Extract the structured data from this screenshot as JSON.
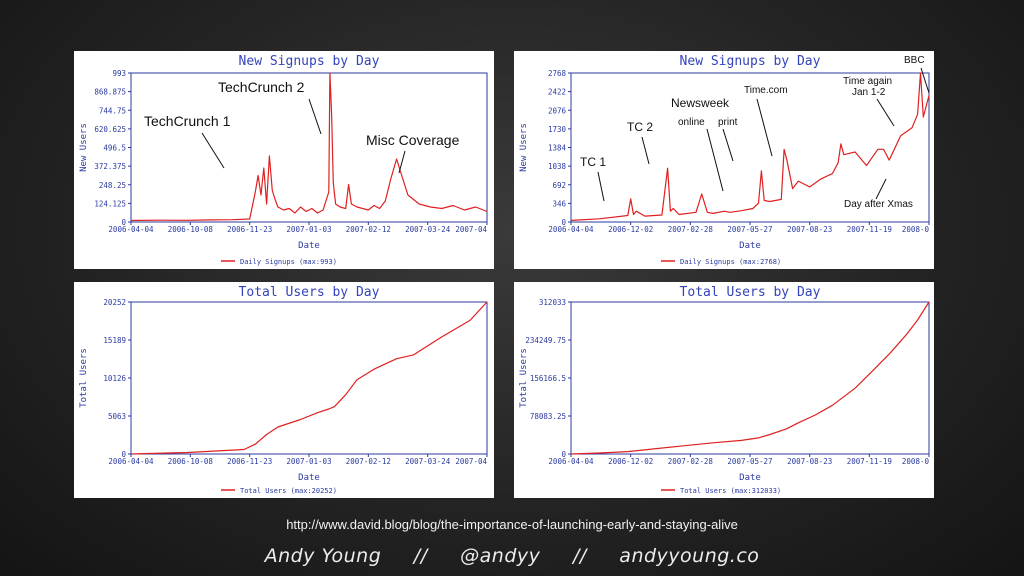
{
  "chart_data": [
    {
      "type": "line",
      "title": "New Signups by Day",
      "xlabel": "Date",
      "ylabel": "New Users",
      "yticks": [
        "993",
        "868.875",
        "744.75",
        "620.625",
        "496.5",
        "372.375",
        "248.25",
        "124.125",
        "0"
      ],
      "ylim": [
        0,
        993
      ],
      "xticks": [
        "2006-04-04",
        "2006-10-08",
        "2006-11-23",
        "2007-01-03",
        "2007-02-12",
        "2007-03-24",
        "2007-04"
      ],
      "xlim": [
        0,
        6.3
      ],
      "legend": "Daily Signups (max:993)",
      "series": [
        {
          "x": [
            0,
            0.5,
            1,
            1.4,
            1.8,
            2.1,
            2.2,
            2.25,
            2.3,
            2.35,
            2.4,
            2.45,
            2.5,
            2.55,
            2.6,
            2.7,
            2.8,
            2.9,
            3.0,
            3.1,
            3.2,
            3.3,
            3.4,
            3.5,
            3.52,
            3.55,
            3.58,
            3.62,
            3.7,
            3.8,
            3.85,
            3.9,
            4.0,
            4.2,
            4.3,
            4.4,
            4.5,
            4.6,
            4.7,
            4.8,
            4.9,
            5.0,
            5.1,
            5.3,
            5.5,
            5.7,
            5.9,
            6.1,
            6.3
          ],
          "y": [
            10,
            12,
            11,
            14,
            15,
            20,
            200,
            310,
            180,
            360,
            120,
            440,
            210,
            150,
            100,
            80,
            90,
            60,
            100,
            70,
            90,
            60,
            80,
            200,
            993,
            720,
            260,
            120,
            100,
            90,
            250,
            120,
            100,
            80,
            110,
            90,
            140,
            290,
            420,
            300,
            180,
            150,
            120,
            100,
            90,
            110,
            80,
            100,
            70
          ]
        }
      ],
      "annotations": [
        "TechCrunch 1",
        "TechCrunch 2",
        "Misc Coverage"
      ]
    },
    {
      "type": "line",
      "title": "New Signups by Day",
      "xlabel": "Date",
      "ylabel": "New Users",
      "yticks": [
        "2768",
        "2422",
        "2076",
        "1730",
        "1384",
        "1038",
        "692",
        "346",
        "0"
      ],
      "ylim": [
        0,
        2768
      ],
      "xticks": [
        "2006-04-04",
        "2006-12-02",
        "2007-02-28",
        "2007-05-27",
        "2007-08-23",
        "2007-11-19",
        "2008-0"
      ],
      "xlim": [
        0,
        6.3
      ],
      "legend": "Daily Signups (max:2768)",
      "series": [
        {
          "x": [
            0,
            0.5,
            1.0,
            1.05,
            1.1,
            1.15,
            1.3,
            1.6,
            1.7,
            1.75,
            1.8,
            1.9,
            2.2,
            2.3,
            2.4,
            2.5,
            2.7,
            2.8,
            3.0,
            3.2,
            3.3,
            3.35,
            3.4,
            3.5,
            3.7,
            3.75,
            3.8,
            3.9,
            4.0,
            4.2,
            4.4,
            4.6,
            4.7,
            4.75,
            4.8,
            5.0,
            5.2,
            5.4,
            5.5,
            5.6,
            5.8,
            6.0,
            6.1,
            6.15,
            6.2,
            6.3
          ],
          "y": [
            30,
            60,
            120,
            430,
            140,
            200,
            110,
            130,
            1000,
            200,
            250,
            140,
            180,
            520,
            180,
            160,
            200,
            180,
            210,
            250,
            350,
            950,
            400,
            380,
            420,
            1350,
            1150,
            620,
            760,
            650,
            800,
            900,
            1100,
            1450,
            1250,
            1300,
            1050,
            1350,
            1350,
            1150,
            1600,
            1750,
            2000,
            2768,
            1950,
            2350
          ]
        }
      ],
      "annotations": [
        "TC 1",
        "TC 2",
        "Newsweek",
        "online",
        "print",
        "Time.com",
        "Time again",
        "Jan 1-2",
        "BBC",
        "Day after Xmas"
      ]
    },
    {
      "type": "line",
      "title": "Total Users by Day",
      "xlabel": "Date",
      "ylabel": "Total Users",
      "yticks": [
        "20252",
        "15189",
        "10126",
        "5063",
        "0"
      ],
      "ylim": [
        0,
        20252
      ],
      "xticks": [
        "2006-04-04",
        "2006-10-08",
        "2006-11-23",
        "2007-01-03",
        "2007-02-12",
        "2007-03-24",
        "2007-04"
      ],
      "xlim": [
        0,
        6.3
      ],
      "legend": "Total Users (max:20252)",
      "series": [
        {
          "x": [
            0,
            1.0,
            2.0,
            2.2,
            2.4,
            2.6,
            3.0,
            3.3,
            3.5,
            3.6,
            3.8,
            4.0,
            4.3,
            4.5,
            4.7,
            5.0,
            5.5,
            6.0,
            6.3
          ],
          "y": [
            0,
            200,
            600,
            1300,
            2600,
            3600,
            4600,
            5500,
            6000,
            6300,
            7900,
            9900,
            11300,
            12000,
            12700,
            13200,
            15600,
            17800,
            20252
          ]
        }
      ]
    },
    {
      "type": "line",
      "title": "Total Users by Day",
      "xlabel": "Date",
      "ylabel": "Total Users",
      "yticks": [
        "312033",
        "234249.75",
        "156166.5",
        "78083.25",
        "0"
      ],
      "ylim": [
        0,
        312033
      ],
      "xticks": [
        "2006-04-04",
        "2006-12-02",
        "2007-02-28",
        "2007-05-27",
        "2007-08-23",
        "2007-11-19",
        "2008-0"
      ],
      "xlim": [
        0,
        6.3
      ],
      "legend": "Total Users (max:312033)",
      "series": [
        {
          "x": [
            0,
            0.5,
            1.0,
            1.5,
            2.0,
            2.5,
            3.0,
            3.3,
            3.5,
            3.8,
            4.0,
            4.3,
            4.6,
            5.0,
            5.3,
            5.6,
            5.9,
            6.1,
            6.3
          ],
          "y": [
            0,
            2000,
            5000,
            11000,
            17000,
            23000,
            28000,
            33000,
            40000,
            52000,
            64000,
            80000,
            100000,
            135000,
            170000,
            205000,
            245000,
            275000,
            312033
          ]
        }
      ]
    }
  ],
  "footer": {
    "url": "http://www.david.blog/blog/the-importance-of-launching-early-and-staying-alive",
    "author": "Andy Young",
    "separator": "//",
    "handle": "@andyy",
    "site": "andyyoung.co"
  },
  "colors": {
    "line": "#e02020",
    "axis": "#2a3aa0",
    "title": "#3344bb"
  }
}
